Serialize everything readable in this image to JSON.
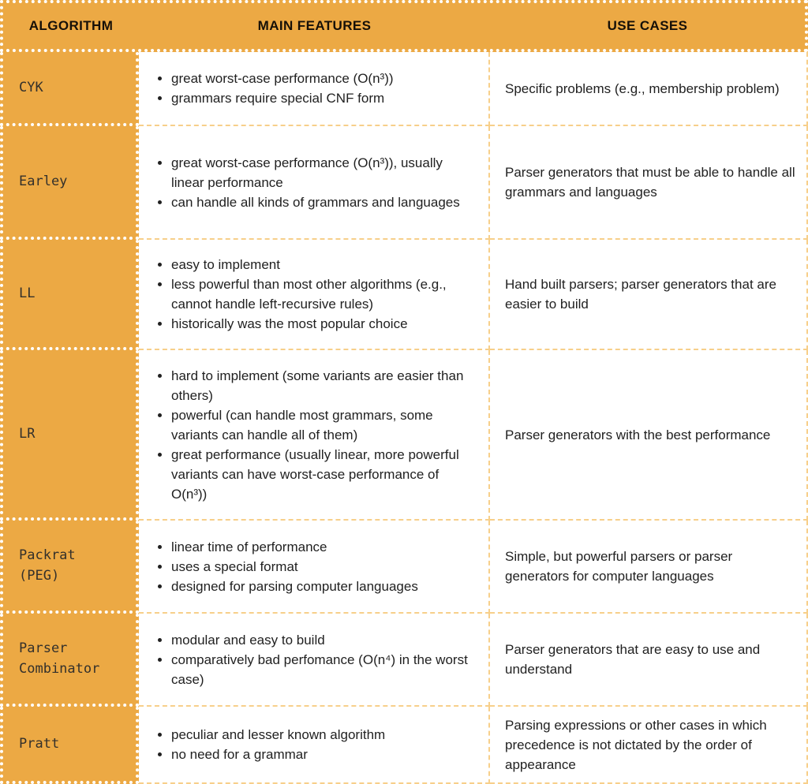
{
  "colors": {
    "orange": "#ECA944",
    "dashed_border": "#F7CF8A",
    "header_text": "#161008",
    "algorithm_text": "#33302b",
    "body_text": "#212121"
  },
  "table": {
    "headers": [
      "ALGORITHM",
      "MAIN FEATURES",
      "USE CASES"
    ],
    "rows": [
      {
        "algorithm": "CYK",
        "features": [
          "great worst-case performance (O(n³))",
          "grammars require special CNF form"
        ],
        "use_case": "Specific problems (e.g., membership problem)"
      },
      {
        "algorithm": "Earley",
        "features": [
          "great worst-case performance (O(n³)), usually linear performance",
          "can handle all kinds of grammars and languages"
        ],
        "use_case": "Parser generators that must be able to handle all grammars and languages"
      },
      {
        "algorithm": "LL",
        "features": [
          "easy to implement",
          "less powerful than most other algorithms (e.g., cannot handle left-recursive rules)",
          "historically was the most popular choice"
        ],
        "use_case": "Hand built parsers; parser generators that are easier to build"
      },
      {
        "algorithm": "LR",
        "features": [
          "hard to implement (some variants are easier than others)",
          "powerful (can handle most grammars, some variants can handle all of them)",
          "great performance (usually linear, more powerful variants can have worst-case performance of O(n³))"
        ],
        "use_case": "Parser generators with the best performance"
      },
      {
        "algorithm": "Packrat\n(PEG)",
        "features": [
          "linear time of performance",
          "uses a special format",
          "designed for parsing computer languages"
        ],
        "use_case": "Simple, but powerful parsers or parser generators for computer languages"
      },
      {
        "algorithm": "Parser\nCombinator",
        "features": [
          "modular and easy to build",
          "comparatively bad perfomance (O(n⁴) in the worst case)"
        ],
        "use_case": "Parser generators that are easy to use and understand"
      },
      {
        "algorithm": "Pratt",
        "features": [
          "peculiar and lesser known algorithm",
          "no need for a grammar"
        ],
        "use_case": "Parsing expressions or other cases in which precedence is not dictated by the order of appearance"
      }
    ]
  }
}
